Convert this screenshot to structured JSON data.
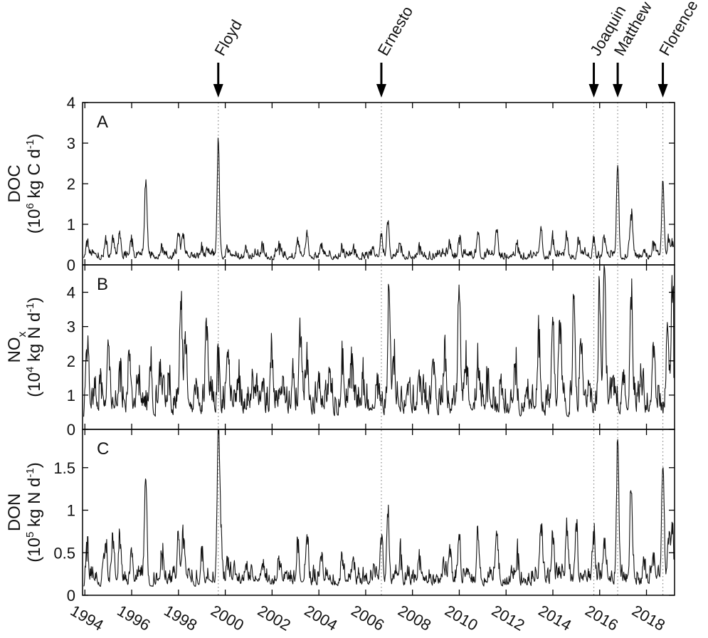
{
  "chart_data": {
    "type": "line",
    "x_range": [
      1993.9,
      2019.2
    ],
    "x_ticks": [
      "1994",
      "1996",
      "1998",
      "2000",
      "2002",
      "2004",
      "2006",
      "2008",
      "2010",
      "2012",
      "2014",
      "2016",
      "2018"
    ],
    "events": [
      {
        "name": "Floyd",
        "year": 1999.7
      },
      {
        "name": "Ernesto",
        "year": 2006.67
      },
      {
        "name": "Joaquin",
        "year": 2015.75
      },
      {
        "name": "Matthew",
        "year": 2016.77
      },
      {
        "name": "Florence",
        "year": 2018.7
      }
    ],
    "panels": [
      {
        "id": "A",
        "ylabel_line1": "DOC",
        "ylabel_line2": [
          "(10",
          "6",
          " kg C d",
          "-1",
          ")"
        ],
        "ylim": [
          0,
          4
        ],
        "yticks": [
          0,
          1,
          2,
          3,
          4
        ],
        "baseline": 0.12,
        "noise": 0.08,
        "peaks": [
          [
            1994.1,
            0.45
          ],
          [
            1994.9,
            0.5
          ],
          [
            1995.2,
            0.55
          ],
          [
            1995.5,
            0.65
          ],
          [
            1996.0,
            0.45
          ],
          [
            1996.6,
            2.1
          ],
          [
            1997.3,
            0.3
          ],
          [
            1998.0,
            0.7
          ],
          [
            1998.2,
            0.65
          ],
          [
            1999.0,
            0.3
          ],
          [
            1999.7,
            3.0
          ],
          [
            2000.1,
            0.3
          ],
          [
            2000.9,
            0.3
          ],
          [
            2001.6,
            0.3
          ],
          [
            2002.3,
            0.25
          ],
          [
            2003.1,
            0.5
          ],
          [
            2003.5,
            0.7
          ],
          [
            2004.1,
            0.4
          ],
          [
            2005.0,
            0.3
          ],
          [
            2005.5,
            0.25
          ],
          [
            2006.67,
            0.7
          ],
          [
            2006.95,
            1.0
          ],
          [
            2007.5,
            0.3
          ],
          [
            2008.3,
            0.25
          ],
          [
            2009.6,
            0.4
          ],
          [
            2010.0,
            0.5
          ],
          [
            2010.8,
            0.75
          ],
          [
            2011.6,
            0.8
          ],
          [
            2012.5,
            0.3
          ],
          [
            2013.5,
            0.85
          ],
          [
            2014.0,
            0.5
          ],
          [
            2014.6,
            0.6
          ],
          [
            2015.1,
            0.5
          ],
          [
            2015.75,
            0.55
          ],
          [
            2016.2,
            0.55
          ],
          [
            2016.77,
            2.45
          ],
          [
            2017.35,
            1.1
          ],
          [
            2017.9,
            0.3
          ],
          [
            2018.3,
            0.35
          ],
          [
            2018.7,
            2.05
          ],
          [
            2018.95,
            0.55
          ],
          [
            2019.1,
            0.45
          ]
        ]
      },
      {
        "id": "B",
        "ylabel_line1": [
          "NO",
          "x"
        ],
        "ylabel_line2": [
          "(10",
          "4",
          " kg N d",
          "-1",
          ")"
        ],
        "ylim": [
          0,
          4.8
        ],
        "yticks": [
          0,
          1,
          2,
          3,
          4
        ],
        "baseline": 0.35,
        "noise": 0.35,
        "peaks": [
          [
            1994.1,
            2.0
          ],
          [
            1994.7,
            0.9
          ],
          [
            1995.0,
            2.45
          ],
          [
            1995.5,
            1.1
          ],
          [
            1995.9,
            2.0
          ],
          [
            1996.3,
            1.0
          ],
          [
            1996.8,
            1.7
          ],
          [
            1997.2,
            1.3
          ],
          [
            1997.6,
            1.0
          ],
          [
            1998.1,
            3.5
          ],
          [
            1998.3,
            2.2
          ],
          [
            1998.8,
            0.9
          ],
          [
            1999.2,
            2.6
          ],
          [
            1999.7,
            1.1
          ],
          [
            2000.1,
            2.1
          ],
          [
            2000.6,
            0.8
          ],
          [
            2001.2,
            0.9
          ],
          [
            2001.6,
            1.1
          ],
          [
            2002.0,
            1.8
          ],
          [
            2002.5,
            1.0
          ],
          [
            2002.9,
            1.5
          ],
          [
            2003.2,
            2.4
          ],
          [
            2003.5,
            1.6
          ],
          [
            2004.0,
            1.2
          ],
          [
            2004.5,
            1.1
          ],
          [
            2005.0,
            1.6
          ],
          [
            2005.4,
            1.2
          ],
          [
            2005.9,
            1.0
          ],
          [
            2006.5,
            0.9
          ],
          [
            2007.0,
            4.0
          ],
          [
            2007.2,
            1.6
          ],
          [
            2007.8,
            1.0
          ],
          [
            2008.3,
            1.1
          ],
          [
            2008.9,
            1.6
          ],
          [
            2009.4,
            1.7
          ],
          [
            2010.0,
            3.8
          ],
          [
            2010.3,
            1.3
          ],
          [
            2010.8,
            1.5
          ],
          [
            2011.2,
            0.8
          ],
          [
            2011.8,
            1.0
          ],
          [
            2012.4,
            1.3
          ],
          [
            2012.9,
            0.9
          ],
          [
            2013.4,
            2.1
          ],
          [
            2014.0,
            3.05
          ],
          [
            2014.3,
            2.5
          ],
          [
            2014.9,
            3.9
          ],
          [
            2015.2,
            2.2
          ],
          [
            2015.6,
            0.8
          ],
          [
            2016.0,
            3.5
          ],
          [
            2016.2,
            4.7
          ],
          [
            2016.6,
            1.0
          ],
          [
            2017.0,
            1.3
          ],
          [
            2017.35,
            3.5
          ],
          [
            2017.8,
            1.0
          ],
          [
            2018.3,
            2.1
          ],
          [
            2018.9,
            2.9
          ],
          [
            2019.1,
            3.7
          ],
          [
            2019.2,
            1.5
          ]
        ]
      },
      {
        "id": "C",
        "ylabel_line1": "DON",
        "ylabel_line2": [
          "(10",
          "5",
          " kg N d",
          "-1",
          ")"
        ],
        "ylim": [
          0,
          1.95
        ],
        "yticks": [
          0,
          0.5,
          1,
          1.5
        ],
        "ytick_labels": [
          "0",
          "0.5",
          "1",
          "1.5"
        ],
        "baseline": 0.1,
        "noise": 0.08,
        "peaks": [
          [
            1994.1,
            0.4
          ],
          [
            1994.9,
            0.5
          ],
          [
            1995.2,
            0.55
          ],
          [
            1995.5,
            0.55
          ],
          [
            1996.0,
            0.45
          ],
          [
            1996.6,
            1.35
          ],
          [
            1997.3,
            0.3
          ],
          [
            1998.0,
            0.65
          ],
          [
            1998.2,
            0.55
          ],
          [
            1999.0,
            0.4
          ],
          [
            1999.7,
            1.9
          ],
          [
            1999.8,
            0.8
          ],
          [
            2000.1,
            0.3
          ],
          [
            2000.9,
            0.3
          ],
          [
            2001.6,
            0.3
          ],
          [
            2002.3,
            0.3
          ],
          [
            2003.1,
            0.5
          ],
          [
            2003.5,
            0.6
          ],
          [
            2004.1,
            0.4
          ],
          [
            2005.0,
            0.35
          ],
          [
            2005.5,
            0.3
          ],
          [
            2006.67,
            0.6
          ],
          [
            2006.95,
            0.92
          ],
          [
            2007.5,
            0.3
          ],
          [
            2008.3,
            0.3
          ],
          [
            2009.6,
            0.45
          ],
          [
            2010.0,
            0.65
          ],
          [
            2010.8,
            0.65
          ],
          [
            2011.6,
            0.7
          ],
          [
            2012.5,
            0.3
          ],
          [
            2013.5,
            0.7
          ],
          [
            2014.0,
            0.6
          ],
          [
            2014.6,
            0.7
          ],
          [
            2015.0,
            0.75
          ],
          [
            2015.75,
            0.6
          ],
          [
            2016.2,
            0.55
          ],
          [
            2016.77,
            1.83
          ],
          [
            2017.35,
            1.2
          ],
          [
            2017.9,
            0.3
          ],
          [
            2018.3,
            0.35
          ],
          [
            2018.7,
            1.5
          ],
          [
            2018.95,
            0.6
          ],
          [
            2019.1,
            0.72
          ]
        ]
      }
    ]
  }
}
